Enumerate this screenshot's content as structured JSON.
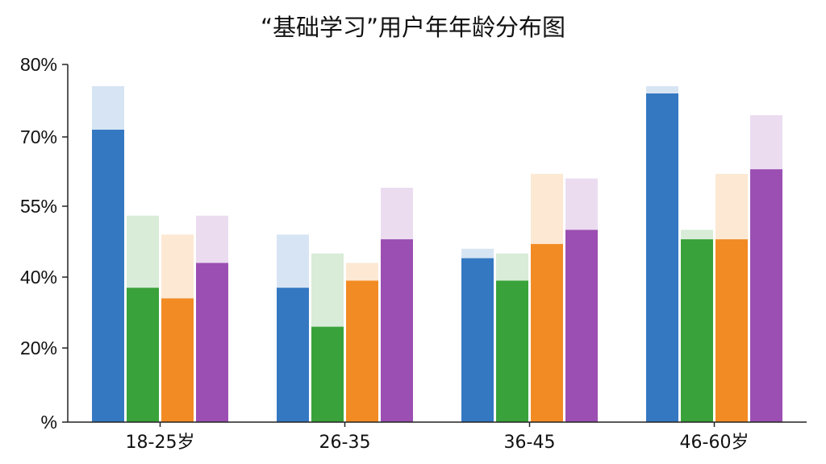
{
  "chart_data": {
    "type": "bar",
    "title": "“基础学习”用户年年龄分布图",
    "categories": [
      "18-25岁",
      "26-35",
      "36-45",
      "46-60岁"
    ],
    "y_tick_labels": [
      "%",
      "20%",
      "40%",
      "55%",
      "70%",
      "80%"
    ],
    "y_tick_values": [
      0,
      20,
      40,
      55,
      70,
      80
    ],
    "ylim": [
      0,
      80
    ],
    "grid": false,
    "legend": "none",
    "series": [
      {
        "color": "#3578c2",
        "values": [
          71,
          37,
          44,
          76
        ],
        "ghost": [
          77,
          49,
          46,
          77
        ]
      },
      {
        "color": "#3aa23a",
        "values": [
          37,
          26,
          39,
          48
        ],
        "ghost": [
          53,
          45,
          45,
          50
        ]
      },
      {
        "color": "#f28b24",
        "values": [
          34,
          39,
          47,
          48
        ],
        "ghost": [
          49,
          43,
          62,
          62
        ]
      },
      {
        "color": "#9b4fb2",
        "values": [
          43,
          48,
          50,
          63
        ],
        "ghost": [
          53,
          59,
          61,
          73
        ]
      }
    ]
  }
}
